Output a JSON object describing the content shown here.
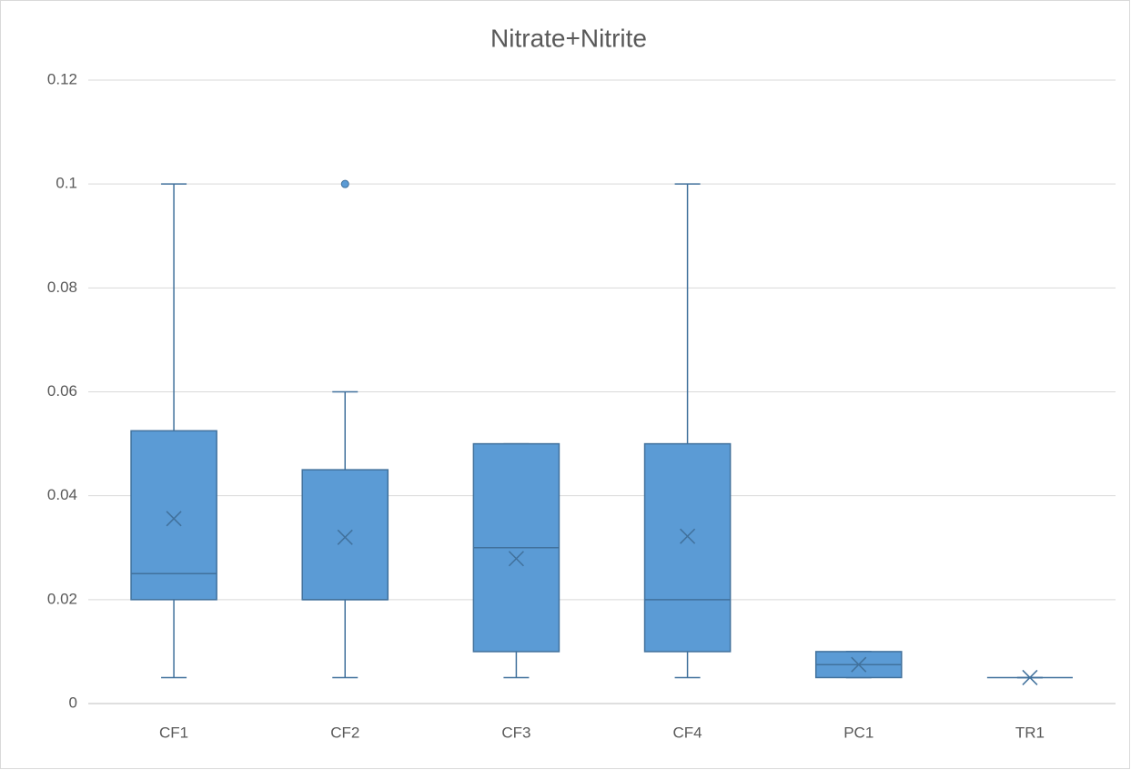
{
  "chart_data": {
    "type": "box",
    "title": "Nitrate+Nitrite",
    "categories": [
      "CF1",
      "CF2",
      "CF3",
      "CF4",
      "PC1",
      "TR1"
    ],
    "color": "#5b9bd5",
    "edge_color": "#41719c",
    "boxes": [
      {
        "min": 0.005,
        "q1": 0.02,
        "median": 0.025,
        "q3": 0.0525,
        "max": 0.1,
        "mean": 0.0356,
        "outliers": []
      },
      {
        "min": 0.005,
        "q1": 0.02,
        "median": 0.02,
        "q3": 0.045,
        "max": 0.06,
        "mean": 0.032,
        "outliers": [
          0.1
        ]
      },
      {
        "min": 0.005,
        "q1": 0.01,
        "median": 0.03,
        "q3": 0.05,
        "max": 0.05,
        "mean": 0.0279,
        "outliers": []
      },
      {
        "min": 0.005,
        "q1": 0.01,
        "median": 0.02,
        "q3": 0.05,
        "max": 0.1,
        "mean": 0.0322,
        "outliers": []
      },
      {
        "min": 0.005,
        "q1": 0.005,
        "median": 0.0075,
        "q3": 0.01,
        "max": 0.01,
        "mean": 0.0075,
        "outliers": []
      },
      {
        "min": 0.005,
        "q1": 0.005,
        "median": 0.005,
        "q3": 0.005,
        "max": 0.005,
        "mean": 0.005,
        "outliers": []
      }
    ],
    "ylim": [
      0,
      0.12
    ],
    "yticks": [
      0,
      0.02,
      0.04,
      0.06,
      0.08,
      0.1,
      0.12
    ],
    "grid": true
  }
}
